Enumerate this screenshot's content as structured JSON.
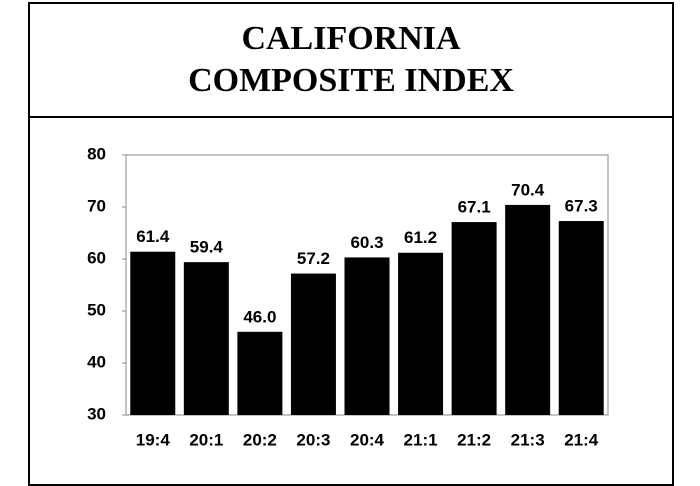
{
  "chart_data": {
    "type": "bar",
    "title": "CALIFORNIA COMPOSITE INDEX",
    "categories": [
      "19:4",
      "20:1",
      "20:2",
      "20:3",
      "20:4",
      "21:1",
      "21:2",
      "21:3",
      "21:4"
    ],
    "values": [
      61.4,
      59.4,
      46.0,
      57.2,
      60.3,
      61.2,
      67.1,
      70.4,
      67.3
    ],
    "value_labels": [
      "61.4",
      "59.4",
      "46.0",
      "57.2",
      "60.3",
      "61.2",
      "67.1",
      "70.4",
      "67.3"
    ],
    "color": "#000000",
    "ylim": [
      30,
      80
    ],
    "yticks": [
      30,
      40,
      50,
      60,
      70,
      80
    ],
    "grid": false
  }
}
